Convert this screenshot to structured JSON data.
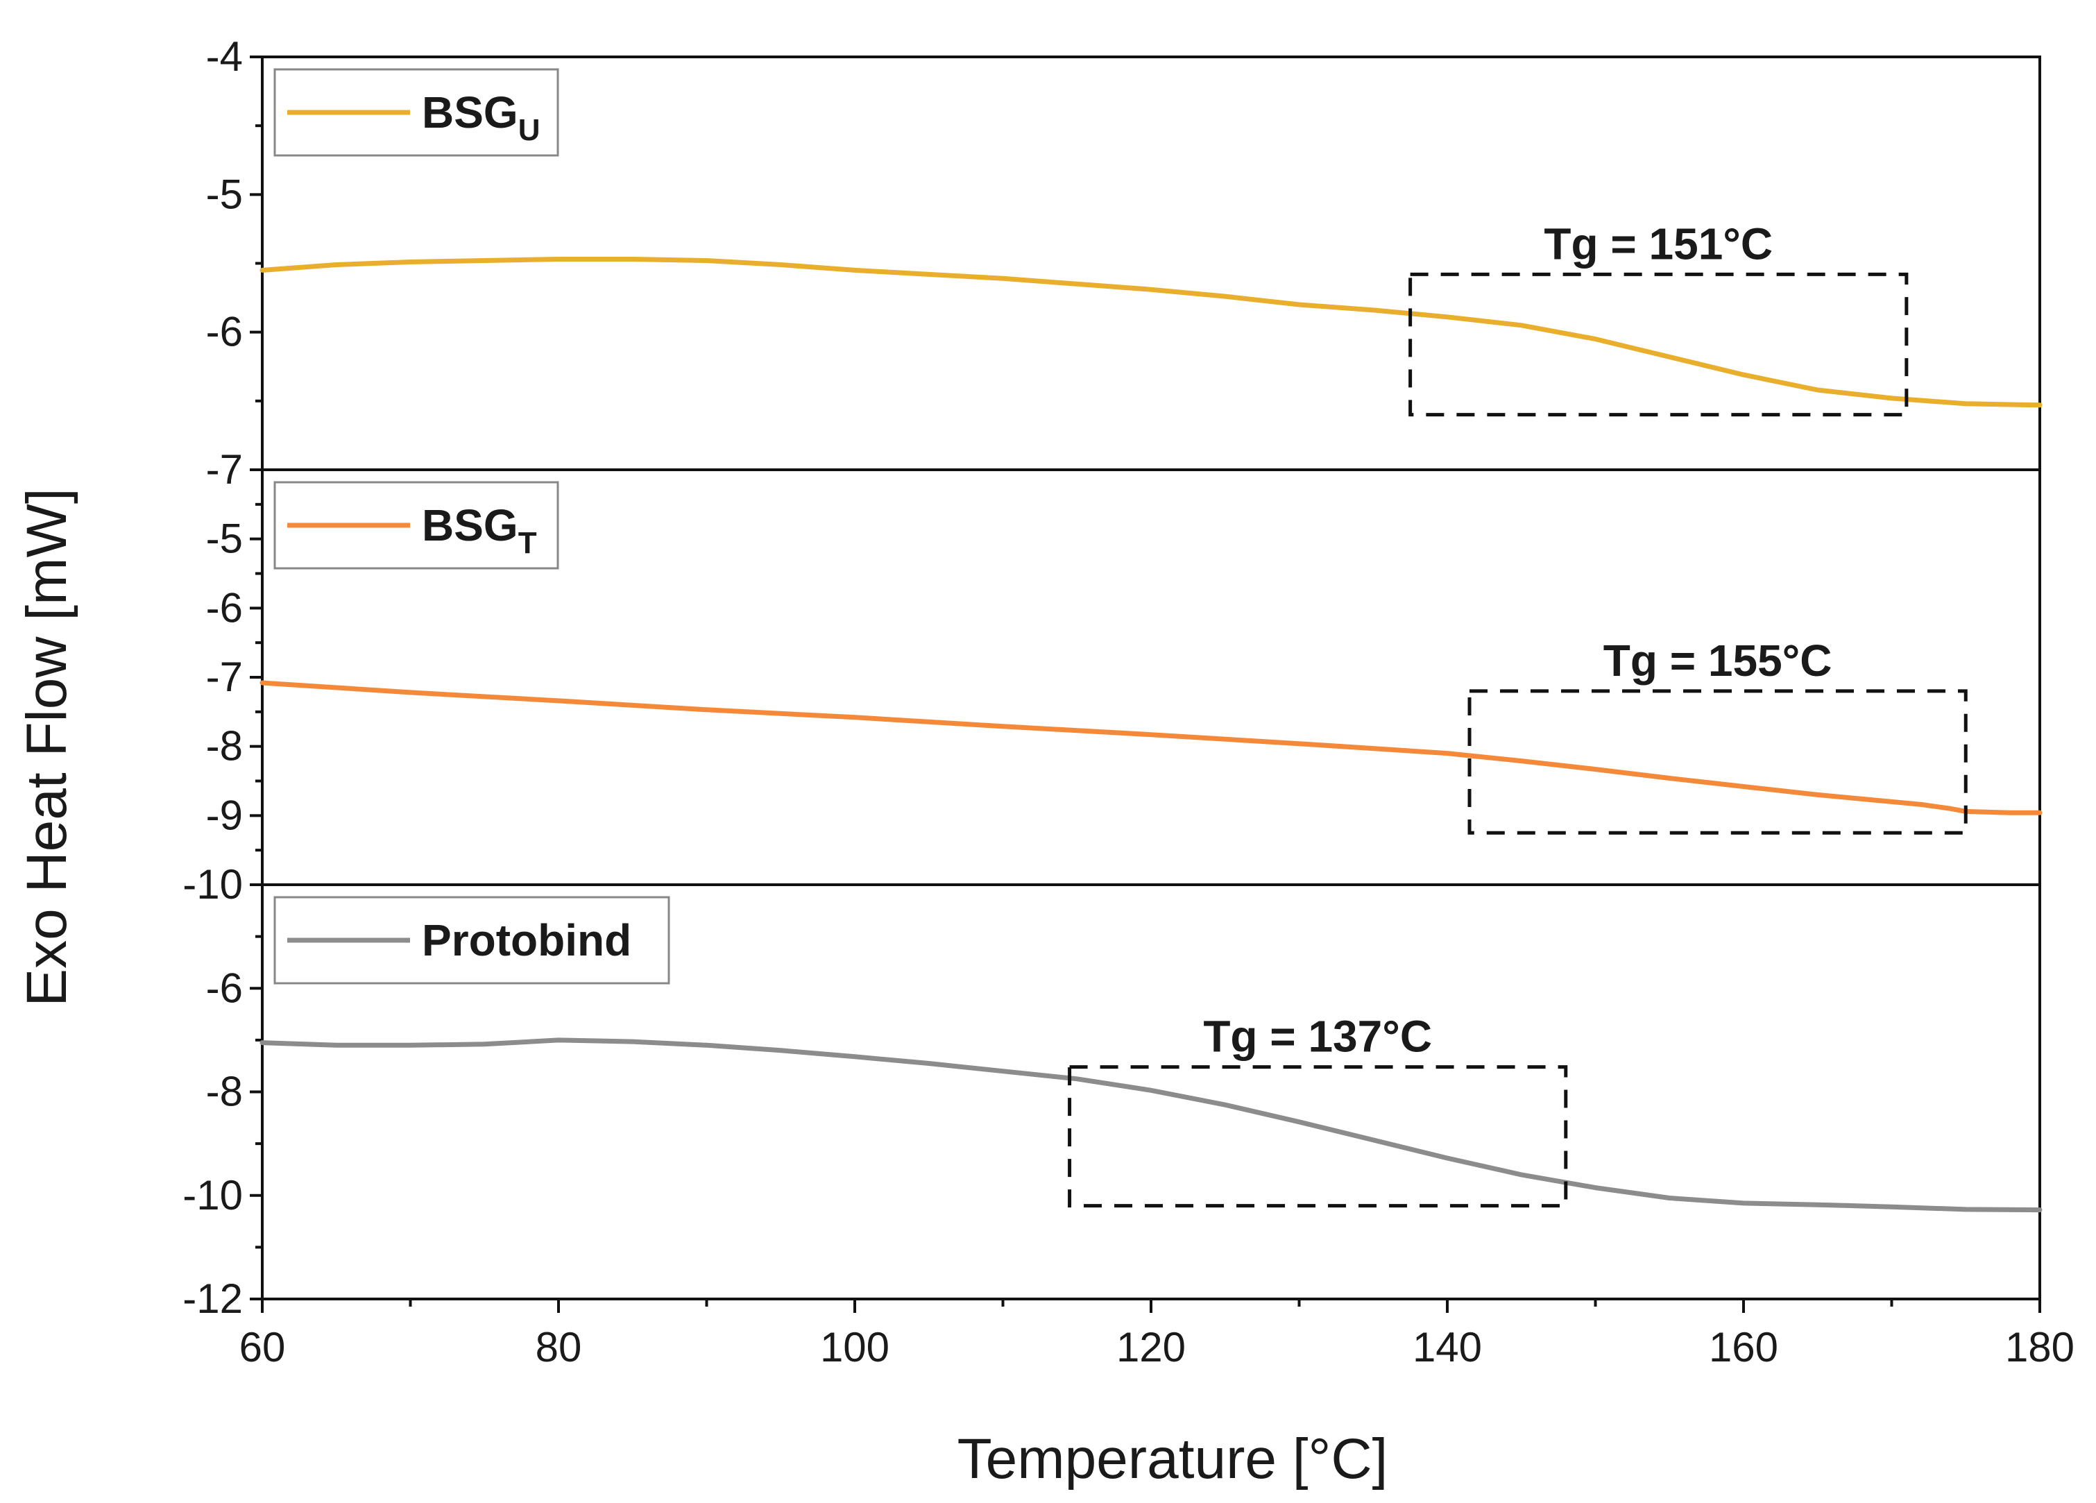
{
  "chart_data": {
    "type": "line",
    "layout": "stacked-panels",
    "xlabel": "Temperature [°C]",
    "ylabel": "Exo Heat Flow [mW]",
    "xlim": [
      60,
      180
    ],
    "xticks": [
      60,
      80,
      100,
      120,
      140,
      160,
      180
    ],
    "panels": [
      {
        "id": "bsgu",
        "ylim": [
          -7,
          -4
        ],
        "yticks": [
          -4,
          -5,
          -6,
          -7
        ],
        "ytick_labels": [
          "-4",
          "-5",
          "-6",
          "-7"
        ],
        "series": {
          "name": "BSG",
          "subscript": "U",
          "color": "#E8AE2C",
          "x": [
            60,
            65,
            70,
            75,
            80,
            85,
            90,
            95,
            100,
            105,
            110,
            115,
            120,
            125,
            130,
            135,
            140,
            145,
            150,
            155,
            160,
            165,
            170,
            175,
            180
          ],
          "y": [
            -5.55,
            -5.51,
            -5.49,
            -5.48,
            -5.47,
            -5.47,
            -5.48,
            -5.51,
            -5.55,
            -5.58,
            -5.61,
            -5.65,
            -5.69,
            -5.74,
            -5.8,
            -5.84,
            -5.89,
            -5.95,
            -6.05,
            -6.18,
            -6.31,
            -6.42,
            -6.48,
            -6.52,
            -6.53
          ]
        },
        "annotation": {
          "text": "Tg = 151°C",
          "box_x": [
            137.5,
            171
          ],
          "box_y": [
            -5.58,
            -6.6
          ]
        }
      },
      {
        "id": "bsgt",
        "ylim": [
          -10,
          -4
        ],
        "yticks": [
          -5,
          -6,
          -7,
          -8,
          -9,
          -10
        ],
        "ytick_labels": [
          "-5",
          "-6",
          "-7",
          "-8",
          "-9",
          "-10"
        ],
        "series": {
          "name": "BSG",
          "subscript": "T",
          "color": "#F5893A",
          "x": [
            60,
            70,
            80,
            90,
            100,
            110,
            120,
            130,
            140,
            145,
            150,
            155,
            160,
            165,
            170,
            172,
            174,
            175,
            178,
            180
          ],
          "y": [
            -7.08,
            -7.22,
            -7.34,
            -7.47,
            -7.58,
            -7.71,
            -7.83,
            -7.96,
            -8.1,
            -8.21,
            -8.33,
            -8.46,
            -8.58,
            -8.7,
            -8.8,
            -8.84,
            -8.9,
            -8.94,
            -8.96,
            -8.96
          ]
        },
        "annotation": {
          "text": "Tg = 155°C",
          "box_x": [
            141.5,
            175
          ],
          "box_y": [
            -7.2,
            -9.25
          ]
        }
      },
      {
        "id": "protobind",
        "ylim": [
          -12,
          -4
        ],
        "yticks": [
          -6,
          -8,
          -10,
          -12
        ],
        "ytick_labels": [
          "-6",
          "-8",
          "-10",
          "-12"
        ],
        "series": {
          "name": "Protobind",
          "subscript": "",
          "color": "#8C8C8C",
          "x": [
            60,
            65,
            70,
            75,
            80,
            85,
            90,
            95,
            100,
            105,
            110,
            115,
            120,
            125,
            130,
            135,
            140,
            145,
            150,
            155,
            160,
            165,
            170,
            175,
            180
          ],
          "y": [
            -7.05,
            -7.1,
            -7.1,
            -7.08,
            -7.0,
            -7.03,
            -7.1,
            -7.2,
            -7.32,
            -7.45,
            -7.6,
            -7.75,
            -7.97,
            -8.25,
            -8.58,
            -8.93,
            -9.28,
            -9.6,
            -9.85,
            -10.05,
            -10.15,
            -10.18,
            -10.22,
            -10.27,
            -10.28
          ]
        },
        "annotation": {
          "text": "Tg = 137°C",
          "box_x": [
            114.5,
            148
          ],
          "box_y": [
            -7.52,
            -10.2
          ]
        }
      }
    ]
  }
}
